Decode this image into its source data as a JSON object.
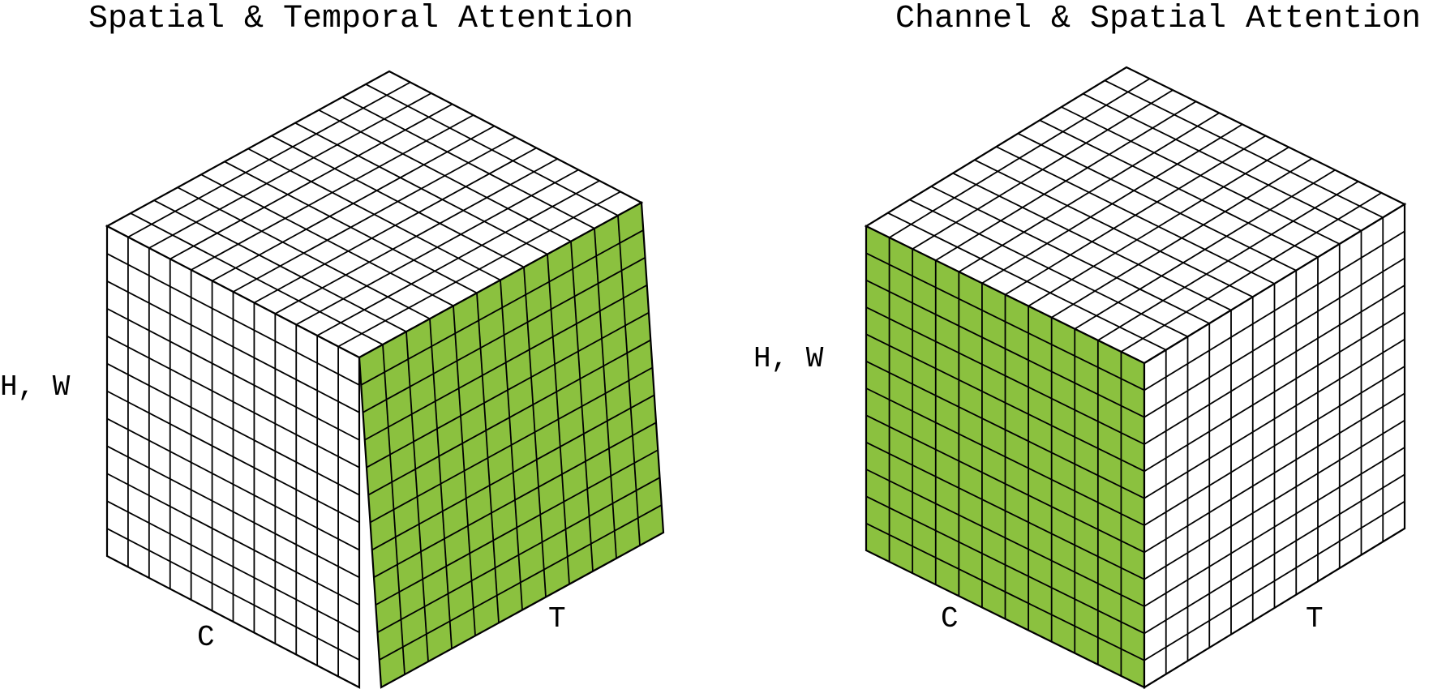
{
  "colors": {
    "highlight": "#8bc13f",
    "cell_fill": "#ffffff",
    "grid_line": "#000000"
  },
  "panels": [
    {
      "title": "Spatial & Temporal Attention",
      "axis_vertical": "H, W",
      "axis_left": "C",
      "axis_right": "T",
      "highlighted_face": "T"
    },
    {
      "title": "Channel & Spatial Attention",
      "axis_vertical": "H, W",
      "axis_left": "C",
      "axis_right": "T",
      "highlighted_face": "C"
    }
  ]
}
